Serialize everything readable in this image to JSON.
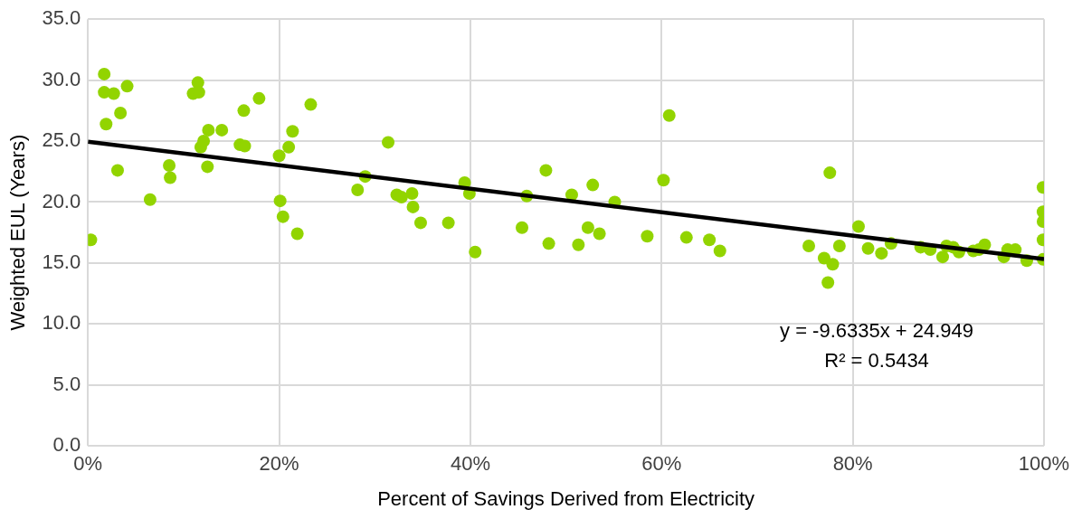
{
  "chart_data": {
    "type": "scatter",
    "xlabel": "Percent of Savings Derived from Electricity",
    "ylabel": "Weighted EUL (Years)",
    "xlim": [
      0,
      100
    ],
    "xticks": [
      {
        "value": 0,
        "label": "0%"
      },
      {
        "value": 20,
        "label": "20%"
      },
      {
        "value": 40,
        "label": "40%"
      },
      {
        "value": 60,
        "label": "60%"
      },
      {
        "value": 80,
        "label": "80%"
      },
      {
        "value": 100,
        "label": "100%"
      }
    ],
    "ylim": [
      0,
      35
    ],
    "yticks": [
      {
        "value": 0,
        "label": "0.0"
      },
      {
        "value": 5,
        "label": "5.0"
      },
      {
        "value": 10,
        "label": "10.0"
      },
      {
        "value": 15,
        "label": "15.0"
      },
      {
        "value": 20,
        "label": "20.0"
      },
      {
        "value": 25,
        "label": "25.0"
      },
      {
        "value": 30,
        "label": "30.0"
      },
      {
        "value": 35,
        "label": "35.0"
      }
    ],
    "grid": true,
    "legend": false,
    "marker": "circle",
    "annotations": [
      "y = -9.6335x + 24.949",
      "R² = 0.5434"
    ],
    "series": [
      {
        "type": "scatter",
        "color": "#92d400",
        "x": [
          0.3,
          1.7,
          1.7,
          1.9,
          2.7,
          3.1,
          3.4,
          4.1,
          6.5,
          8.5,
          8.6,
          11.0,
          11.5,
          11.6,
          11.8,
          12.1,
          12.5,
          12.6,
          14.0,
          15.9,
          16.3,
          16.4,
          17.9,
          20.0,
          20.1,
          20.4,
          21.0,
          21.4,
          21.9,
          23.3,
          28.2,
          29.0,
          31.4,
          32.3,
          32.8,
          33.9,
          34.0,
          34.8,
          37.7,
          39.4,
          39.9,
          40.5,
          45.4,
          45.9,
          47.9,
          48.2,
          50.6,
          51.3,
          52.3,
          52.8,
          53.5,
          55.1,
          58.5,
          60.2,
          60.8,
          62.6,
          65.0,
          66.1,
          75.4,
          77.0,
          77.4,
          77.6,
          77.9,
          78.6,
          80.6,
          81.6,
          83.0,
          84.0,
          87.1,
          88.1,
          89.4,
          89.8,
          90.5,
          91.1,
          92.6,
          93.2,
          93.8,
          95.8,
          96.2,
          97.0,
          98.2,
          99.9,
          99.9,
          99.9,
          99.9,
          99.9
        ],
        "values": [
          16.9,
          30.5,
          29.0,
          26.4,
          28.9,
          22.6,
          27.3,
          29.5,
          20.2,
          23.0,
          22.0,
          28.9,
          29.8,
          29.0,
          24.5,
          25.0,
          22.9,
          25.9,
          25.9,
          24.7,
          27.5,
          24.6,
          28.5,
          23.8,
          20.1,
          18.8,
          24.5,
          25.8,
          17.4,
          28.0,
          21.0,
          22.1,
          24.9,
          20.6,
          20.4,
          20.7,
          19.6,
          18.3,
          18.3,
          21.6,
          20.7,
          15.9,
          17.9,
          20.5,
          22.6,
          16.6,
          20.6,
          16.5,
          17.9,
          21.4,
          17.4,
          20.0,
          17.2,
          21.8,
          27.1,
          17.1,
          16.9,
          16.0,
          16.4,
          15.4,
          13.4,
          22.4,
          14.9,
          16.4,
          18.0,
          16.2,
          15.8,
          16.6,
          16.3,
          16.1,
          15.5,
          16.4,
          16.3,
          15.9,
          16.0,
          16.1,
          16.5,
          15.5,
          16.1,
          16.1,
          15.2,
          21.2,
          19.2,
          18.4,
          16.9,
          15.3
        ]
      },
      {
        "type": "line",
        "color": "#000000",
        "marker": "none",
        "x": [
          0,
          100
        ],
        "values": [
          24.95,
          15.32
        ]
      }
    ]
  }
}
